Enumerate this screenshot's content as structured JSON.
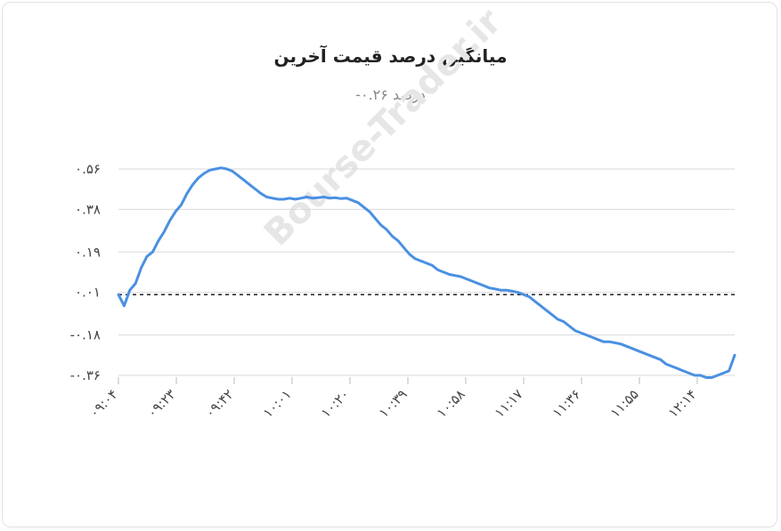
{
  "chart_data": {
    "type": "line",
    "title": "میانگین درصد قیمت آخرین",
    "subtitle": "درصد ۰.۲۶-",
    "watermark": "Bourse-Trader.ir",
    "xlabel": "",
    "ylabel": "",
    "x_ticks": [
      "۰۹:۰۴",
      "۰۹:۲۳",
      "۰۹:۴۲",
      "۱۰:۰۱",
      "۱۰:۲۰",
      "۱۰:۳۹",
      "۱۰:۵۸",
      "۱۱:۱۷",
      "۱۱:۳۶",
      "۱۱:۵۵",
      "۱۲:۱۴"
    ],
    "y_ticks": [
      {
        "value": 0.56,
        "label": "۰.۵۶"
      },
      {
        "value": 0.38,
        "label": "۰.۳۸"
      },
      {
        "value": 0.19,
        "label": "۰.۱۹"
      },
      {
        "value": 0.01,
        "label": "۰.۰۱"
      },
      {
        "value": -0.18,
        "label": "-۰.۱۸"
      },
      {
        "value": -0.36,
        "label": "-۰.۳۶"
      }
    ],
    "ylim": [
      -0.38,
      0.57
    ],
    "reference_line": 0.0,
    "grid": true,
    "line_color": "#4a90e2",
    "points": [
      [
        0.0,
        0.0
      ],
      [
        0.5,
        -0.05
      ],
      [
        1.0,
        0.02
      ],
      [
        1.5,
        0.05
      ],
      [
        2.0,
        0.12
      ],
      [
        2.5,
        0.17
      ],
      [
        3.0,
        0.19
      ],
      [
        3.5,
        0.24
      ],
      [
        4.0,
        0.28
      ],
      [
        4.5,
        0.33
      ],
      [
        5.0,
        0.37
      ],
      [
        5.5,
        0.4
      ],
      [
        6.0,
        0.45
      ],
      [
        6.5,
        0.49
      ],
      [
        7.0,
        0.52
      ],
      [
        7.5,
        0.54
      ],
      [
        8.0,
        0.555
      ],
      [
        8.5,
        0.56
      ],
      [
        9.0,
        0.565
      ],
      [
        9.5,
        0.56
      ],
      [
        10.0,
        0.55
      ],
      [
        10.5,
        0.53
      ],
      [
        11.0,
        0.51
      ],
      [
        11.5,
        0.49
      ],
      [
        12.0,
        0.47
      ],
      [
        12.5,
        0.45
      ],
      [
        13.0,
        0.435
      ],
      [
        13.5,
        0.43
      ],
      [
        14.0,
        0.425
      ],
      [
        14.5,
        0.425
      ],
      [
        15.0,
        0.43
      ],
      [
        15.5,
        0.425
      ],
      [
        16.0,
        0.43
      ],
      [
        16.5,
        0.435
      ],
      [
        17.0,
        0.43
      ],
      [
        17.5,
        0.432
      ],
      [
        18.0,
        0.435
      ],
      [
        18.5,
        0.43
      ],
      [
        19.0,
        0.432
      ],
      [
        19.5,
        0.428
      ],
      [
        20.0,
        0.43
      ],
      [
        20.5,
        0.42
      ],
      [
        21.0,
        0.41
      ],
      [
        21.5,
        0.39
      ],
      [
        22.0,
        0.37
      ],
      [
        22.5,
        0.34
      ],
      [
        23.0,
        0.31
      ],
      [
        23.5,
        0.29
      ],
      [
        24.0,
        0.26
      ],
      [
        24.5,
        0.24
      ],
      [
        25.0,
        0.21
      ],
      [
        25.5,
        0.18
      ],
      [
        26.0,
        0.16
      ],
      [
        26.5,
        0.15
      ],
      [
        27.0,
        0.14
      ],
      [
        27.5,
        0.13
      ],
      [
        28.0,
        0.11
      ],
      [
        28.5,
        0.1
      ],
      [
        29.0,
        0.09
      ],
      [
        29.5,
        0.085
      ],
      [
        30.0,
        0.08
      ],
      [
        30.5,
        0.07
      ],
      [
        31.0,
        0.06
      ],
      [
        31.5,
        0.05
      ],
      [
        32.0,
        0.04
      ],
      [
        32.5,
        0.03
      ],
      [
        33.0,
        0.025
      ],
      [
        33.5,
        0.02
      ],
      [
        34.0,
        0.02
      ],
      [
        34.5,
        0.015
      ],
      [
        35.0,
        0.01
      ],
      [
        35.5,
        0.0
      ],
      [
        36.0,
        -0.01
      ],
      [
        36.5,
        -0.03
      ],
      [
        37.0,
        -0.05
      ],
      [
        37.5,
        -0.07
      ],
      [
        38.0,
        -0.09
      ],
      [
        38.5,
        -0.11
      ],
      [
        39.0,
        -0.12
      ],
      [
        39.5,
        -0.14
      ],
      [
        40.0,
        -0.16
      ],
      [
        40.5,
        -0.17
      ],
      [
        41.0,
        -0.18
      ],
      [
        41.5,
        -0.19
      ],
      [
        42.0,
        -0.2
      ],
      [
        42.5,
        -0.21
      ],
      [
        43.0,
        -0.21
      ],
      [
        43.5,
        -0.215
      ],
      [
        44.0,
        -0.22
      ],
      [
        44.5,
        -0.23
      ],
      [
        45.0,
        -0.24
      ],
      [
        45.5,
        -0.25
      ],
      [
        46.0,
        -0.26
      ],
      [
        46.5,
        -0.27
      ],
      [
        47.0,
        -0.28
      ],
      [
        47.5,
        -0.29
      ],
      [
        48.0,
        -0.31
      ],
      [
        48.5,
        -0.32
      ],
      [
        49.0,
        -0.33
      ],
      [
        49.5,
        -0.34
      ],
      [
        50.0,
        -0.35
      ],
      [
        50.5,
        -0.36
      ],
      [
        51.0,
        -0.36
      ],
      [
        51.5,
        -0.37
      ],
      [
        52.0,
        -0.37
      ],
      [
        52.5,
        -0.36
      ],
      [
        53.0,
        -0.35
      ],
      [
        53.5,
        -0.34
      ],
      [
        54.0,
        -0.27
      ]
    ]
  }
}
